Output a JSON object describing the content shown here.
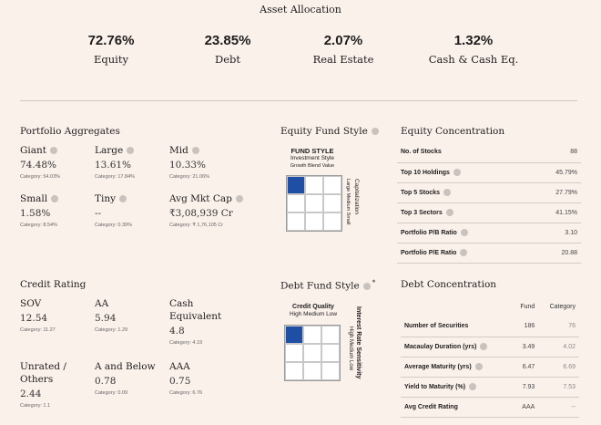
{
  "asset_allocation": {
    "title": "Asset Allocation",
    "items": [
      {
        "pct": "72.76%",
        "label": "Equity"
      },
      {
        "pct": "23.85%",
        "label": "Debt"
      },
      {
        "pct": "2.07%",
        "label": "Real Estate"
      },
      {
        "pct": "1.32%",
        "label": "Cash & Cash Eq."
      }
    ]
  },
  "portfolio_aggregates": {
    "title": "Portfolio Aggregates",
    "metrics": [
      {
        "label": "Giant",
        "value": "74.48%",
        "category": "Category: 54.03%"
      },
      {
        "label": "Large",
        "value": "13.61%",
        "category": "Category: 17.84%"
      },
      {
        "label": "Mid",
        "value": "10.33%",
        "category": "Category: 21.06%"
      },
      {
        "label": "Small",
        "value": "1.58%",
        "category": "Category: 8.54%"
      },
      {
        "label": "Tiny",
        "value": "--",
        "category": "Category: 0.39%"
      },
      {
        "label": "Avg Mkt Cap",
        "value": "₹3,08,939 Cr",
        "category": "Category: ₹ 1,76,105 Cr"
      }
    ]
  },
  "equity_fund_style": {
    "title": "Equity Fund Style",
    "box_title": "FUND STYLE",
    "subtitle": "Investment Style",
    "columns": "Growth Blend Value",
    "side_title": "Capitalization",
    "side_labels": "Large Medium Small",
    "highlight": "Large Growth"
  },
  "equity_concentration": {
    "title": "Equity Concentration",
    "rows": [
      {
        "label": "No. of Stocks",
        "value": "88"
      },
      {
        "label": "Top 10 Holdings",
        "value": "45.79%"
      },
      {
        "label": "Top 5 Stocks",
        "value": "27.79%"
      },
      {
        "label": "Top 3 Sectors",
        "value": "41.15%"
      },
      {
        "label": "Portfolio P/B Ratio",
        "value": "3.10"
      },
      {
        "label": "Portfolio P/E Ratio",
        "value": "20.88"
      }
    ]
  },
  "credit_rating": {
    "title": "Credit Rating",
    "metrics": [
      {
        "label": "SOV",
        "value": "12.54",
        "category": "Category: 11.27"
      },
      {
        "label": "AA",
        "value": "5.94",
        "category": "Category: 1.29"
      },
      {
        "label": "Cash Equivalent",
        "value": "4.8",
        "category": "Category: 4.19"
      },
      {
        "label": "Unrated / Others",
        "value": "2.44",
        "category": "Category: 1.1"
      },
      {
        "label": "A and Below",
        "value": "0.78",
        "category": "Category: 0.09"
      },
      {
        "label": "AAA",
        "value": "0.75",
        "category": "Category: 6.76"
      }
    ]
  },
  "debt_fund_style": {
    "title": "Debt Fund Style",
    "asterisk": "*",
    "box_title": "Credit Quality",
    "columns": "High  Medium  Low",
    "side_title": "Interest Rate Sensitivity",
    "side_labels": "High  Medium  Low",
    "highlight": "High Quality / High Sensitivity"
  },
  "debt_concentration": {
    "title": "Debt Concentration",
    "headers": {
      "fund": "Fund",
      "category": "Category"
    },
    "rows": [
      {
        "label": "Number of Securities",
        "fund": "186",
        "category": "76"
      },
      {
        "label": "Macaulay Duration (yrs)",
        "fund": "3.49",
        "category": "4.02"
      },
      {
        "label": "Average Maturity (yrs)",
        "fund": "6.47",
        "category": "6.69"
      },
      {
        "label": "Yield to Maturity (%)",
        "fund": "7.93",
        "category": "7.53"
      },
      {
        "label": "Avg Credit Rating",
        "fund": "AAA",
        "category": "--"
      }
    ]
  },
  "colors": {
    "background": "#fbf1eb",
    "highlight": "#1f4fa5",
    "info_icon": "#c9c2bd"
  }
}
